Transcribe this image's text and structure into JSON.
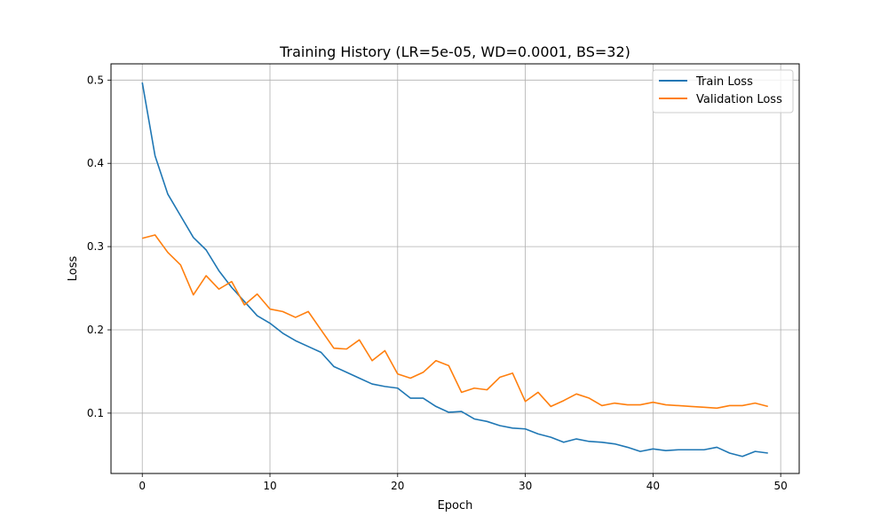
{
  "chart_data": {
    "type": "line",
    "title": "Training History (LR=5e-05, WD=0.0001, BS=32)",
    "xlabel": "Epoch",
    "ylabel": "Loss",
    "xlim": [
      -2.45,
      51.45
    ],
    "ylim": [
      0.0275,
      0.5195
    ],
    "xticks": [
      0,
      10,
      20,
      30,
      40,
      50
    ],
    "xtick_labels": [
      "0",
      "10",
      "20",
      "30",
      "40",
      "50"
    ],
    "yticks": [
      0.1,
      0.2,
      0.3,
      0.4,
      0.5
    ],
    "ytick_labels": [
      "0.1",
      "0.2",
      "0.3",
      "0.4",
      "0.5"
    ],
    "grid": true,
    "legend_position": "top-right",
    "x": [
      0,
      1,
      2,
      3,
      4,
      5,
      6,
      7,
      8,
      9,
      10,
      11,
      12,
      13,
      14,
      15,
      16,
      17,
      18,
      19,
      20,
      21,
      22,
      23,
      24,
      25,
      26,
      27,
      28,
      29,
      30,
      31,
      32,
      33,
      34,
      35,
      36,
      37,
      38,
      39,
      40,
      41,
      42,
      43,
      44,
      45,
      46,
      47,
      48,
      49
    ],
    "series": [
      {
        "name": "Train Loss",
        "color": "#1f77b4",
        "values": [
          0.497,
          0.409,
          0.363,
          0.337,
          0.311,
          0.296,
          0.271,
          0.251,
          0.234,
          0.217,
          0.208,
          0.196,
          0.187,
          0.18,
          0.173,
          0.156,
          0.149,
          0.142,
          0.135,
          0.132,
          0.13,
          0.118,
          0.118,
          0.108,
          0.101,
          0.102,
          0.093,
          0.09,
          0.085,
          0.082,
          0.081,
          0.075,
          0.071,
          0.065,
          0.069,
          0.066,
          0.065,
          0.063,
          0.059,
          0.054,
          0.057,
          0.055,
          0.056,
          0.056,
          0.056,
          0.059,
          0.052,
          0.048,
          0.054,
          0.052
        ]
      },
      {
        "name": "Validation Loss",
        "color": "#ff7f0e",
        "values": [
          0.31,
          0.314,
          0.293,
          0.278,
          0.242,
          0.265,
          0.249,
          0.258,
          0.23,
          0.243,
          0.225,
          0.222,
          0.215,
          0.222,
          0.2,
          0.178,
          0.177,
          0.188,
          0.163,
          0.175,
          0.147,
          0.142,
          0.149,
          0.163,
          0.157,
          0.125,
          0.13,
          0.128,
          0.143,
          0.148,
          0.114,
          0.125,
          0.108,
          0.115,
          0.123,
          0.118,
          0.109,
          0.112,
          0.11,
          0.11,
          0.113,
          0.11,
          0.109,
          0.108,
          0.107,
          0.106,
          0.109,
          0.109,
          0.112,
          0.108
        ]
      }
    ]
  }
}
